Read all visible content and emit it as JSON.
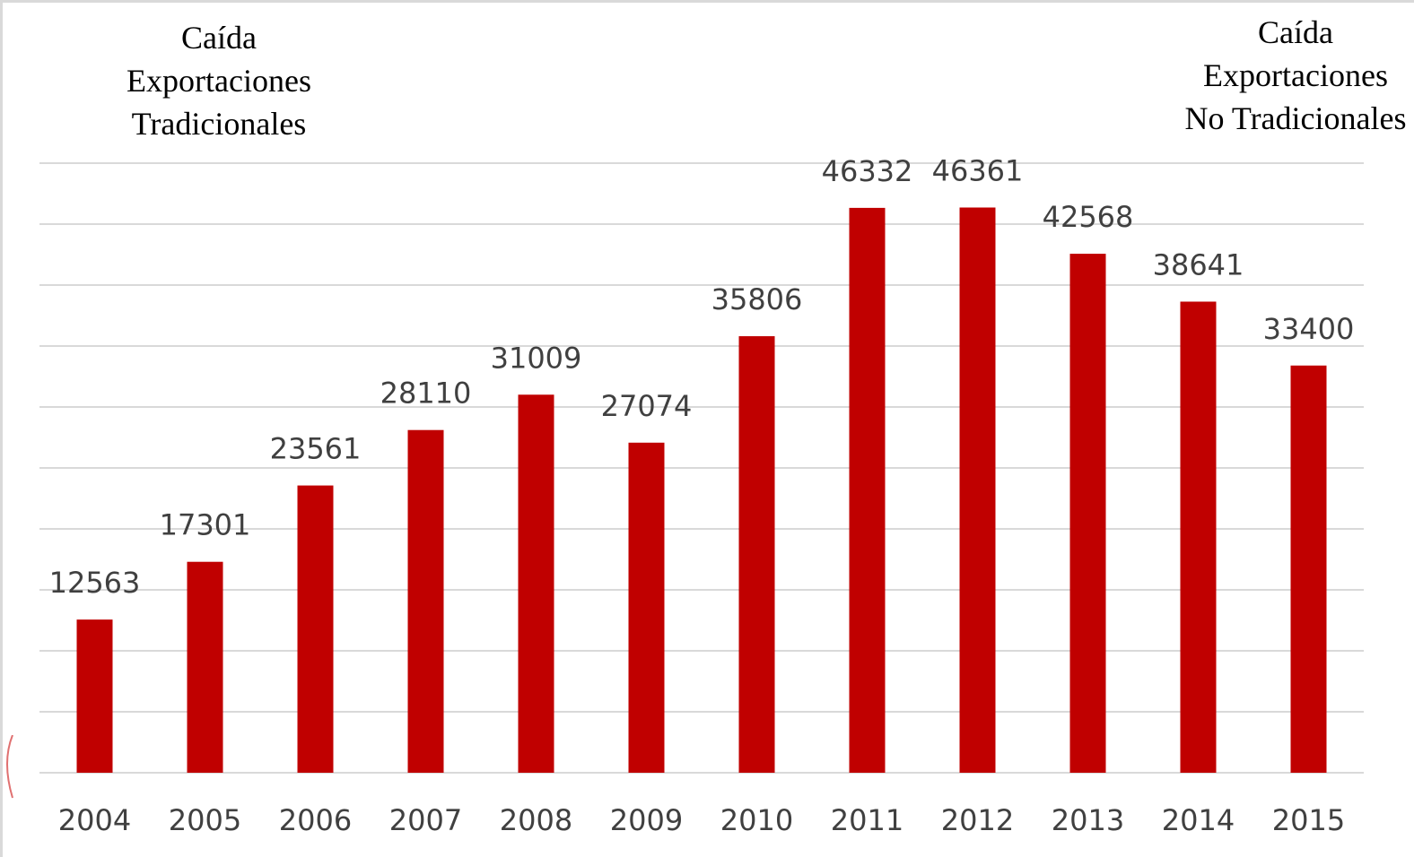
{
  "annotations": {
    "left": [
      "Caída",
      "Exportaciones",
      "Tradicionales"
    ],
    "right": [
      "Caída",
      "Exportaciones",
      "No Tradicionales"
    ]
  },
  "colors": {
    "bar": "#c00000",
    "grid": "#d9d9d9",
    "text": "#404040"
  },
  "chart_data": {
    "type": "bar",
    "categories": [
      "2004",
      "2005",
      "2006",
      "2007",
      "2008",
      "2009",
      "2010",
      "2011",
      "2012",
      "2013",
      "2014",
      "2015"
    ],
    "values": [
      12563,
      17301,
      23561,
      28110,
      31009,
      27074,
      35806,
      46332,
      46361,
      42568,
      38641,
      33400
    ],
    "title": "",
    "xlabel": "",
    "ylabel": "",
    "ylim": [
      0,
      50000
    ],
    "grid": true,
    "data_labels": true,
    "legend": "none"
  }
}
